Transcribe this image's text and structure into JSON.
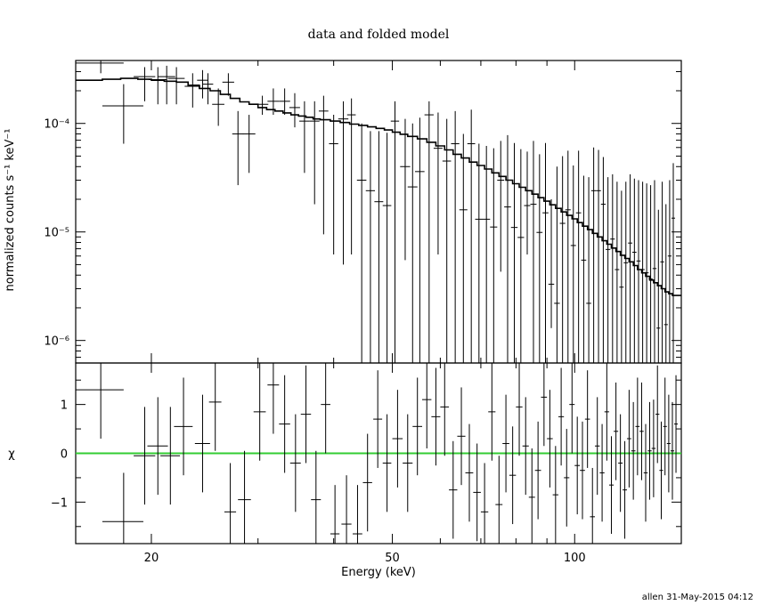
{
  "title": "data and folded model",
  "footer": "allen 31-May-2015 04:12",
  "colors": {
    "model": "#000000",
    "data": "#000000",
    "zero_line": "#33cc33"
  },
  "chart_data": [
    {
      "panel": "top",
      "type": "line",
      "title": "data and folded model",
      "xlabel": "",
      "ylabel": "normalized counts s⁻¹ keV⁻¹",
      "xscale": "log",
      "yscale": "log",
      "xlim": [
        15,
        150
      ],
      "ylim": [
        6.2e-07,
        0.00038
      ],
      "ytick_labels": [
        "10⁻⁶",
        "10⁻⁵",
        "10⁻⁴"
      ],
      "ytick_values": [
        1e-06,
        1e-05,
        0.0001
      ],
      "series": [
        {
          "kind": "data_points_with_errors",
          "x": [
            16.5,
            18.0,
            19.5,
            20.5,
            21.2,
            22.0,
            23.4,
            24.3,
            24.8,
            25.8,
            26.8,
            27.8,
            29.0,
            30.5,
            31.8,
            33.2,
            34.5,
            35.8,
            37.2,
            38.5,
            40.0,
            41.5,
            42.8,
            44.5,
            46.0,
            47.5,
            49.0,
            50.5,
            52.5,
            54.0,
            55.5,
            57.5,
            59.5,
            61.5,
            63.5,
            65.5,
            67.5,
            69.5,
            71.5,
            73.5,
            75.5,
            77.5,
            79.5,
            81.5,
            83.5,
            85.5,
            87.5,
            89.5,
            91.5,
            93.5,
            95.5,
            97.5,
            99.5,
            101.5,
            103.5,
            105.5,
            107.5,
            109.5,
            111.5,
            113.5,
            115.5,
            117.5,
            119.5,
            121.5,
            123.5,
            125.5,
            127.5,
            129.5,
            131.5,
            133.5,
            135.5,
            137.5,
            139.5,
            141.5,
            143.5,
            145.5
          ],
          "y": [
            0.00036,
            0.000145,
            0.00027,
            0.000253,
            0.00027,
            0.00026,
            0.00022,
            0.00025,
            0.00023,
            0.00015,
            0.00024,
            8e-05,
            8e-05,
            0.00015,
            0.00016,
            0.00016,
            0.00014,
            0.000105,
            0.000105,
            0.00013,
            6.5e-05,
            0.00011,
            0.00012,
            3e-05,
            2.4e-05,
            1.9e-05,
            1.75e-05,
            0.000105,
            4e-05,
            2.6e-05,
            3.6e-05,
            0.00012,
            5.9e-05,
            4.5e-05,
            6.5e-05,
            1.6e-05,
            6.5e-05,
            1.31e-05,
            1.31e-05,
            1.11e-05,
            3e-05,
            1.7e-05,
            1.1e-05,
            8.9e-06,
            1.75e-05,
            1.8e-05,
            9.9e-06,
            1.5e-05,
            3.3e-06,
            2.2e-06,
            1.2e-05,
            1.6e-05,
            7.5e-06,
            1.5e-05,
            5.5e-06,
            2.2e-06,
            2.4e-05,
            2.4e-05,
            1.8e-05,
            6.9e-06,
            8.6e-06,
            4.5e-06,
            3.1e-06,
            5.2e-06,
            7.9e-06,
            6.5e-06,
            5.4e-06,
            4.5e-06,
            4.2e-06,
            3.7e-06,
            4.6e-06,
            1.3e-06,
            5.3e-06,
            1.4e-06,
            6e-06,
            1.34e-05
          ],
          "xerr": [
            1.5,
            1.4,
            0.8,
            0.7,
            0.7,
            0.7,
            0.7,
            0.5,
            0.5,
            0.6,
            0.6,
            0.6,
            0.7,
            0.7,
            0.7,
            0.7,
            0.7,
            0.7,
            0.7,
            0.7,
            0.7,
            0.8,
            0.7,
            0.8,
            0.8,
            0.8,
            0.8,
            0.8,
            1.0,
            1.0,
            1.0,
            1.0,
            1.0,
            1.0,
            1.0,
            1.0,
            1.0,
            1.0,
            1.0,
            1.0,
            1.0,
            1.0,
            1.0,
            1.0,
            1.0,
            1.0,
            1.0,
            1.0,
            1.0,
            1.0,
            1.0,
            1.0,
            1.0,
            1.0,
            1.0,
            1.0,
            1.0,
            1.0,
            1.0,
            1.0,
            1.0,
            1.0,
            1.0,
            1.0,
            1.0,
            1.0,
            1.0,
            1.0,
            1.0,
            1.0,
            1.0,
            1.0,
            1.0,
            1.0,
            1.0,
            1.0
          ],
          "ylo": [
            0.00029,
            6.5e-05,
            0.00016,
            0.00015,
            0.00015,
            0.00015,
            0.00014,
            0.00017,
            0.00015,
            9.5e-05,
            0.00018,
            2.7e-05,
            3.5e-05,
            0.00012,
            0.00012,
            0.00012,
            9.2e-05,
            3.5e-05,
            1.8e-05,
            9.5e-06,
            6.2e-06,
            5e-06,
            6.2e-06,
            6.2e-07,
            6.2e-07,
            6.2e-07,
            6.2e-07,
            6.2e-07,
            5.5e-06,
            6.2e-07,
            6.2e-07,
            5e-07,
            6.2e-06,
            6.2e-07,
            6.2e-07,
            6.2e-07,
            3.75e-07,
            6.2e-07,
            6.2e-07,
            6.2e-07,
            4.3e-06,
            6.2e-07,
            6.2e-07,
            6.2e-07,
            6.2e-06,
            6.2e-07,
            6.2e-07,
            6.2e-07,
            1.3e-06,
            6.2e-07,
            6.2e-07,
            6.2e-07,
            6.2e-07,
            6.2e-07,
            6.2e-07,
            6.2e-07,
            6.2e-07,
            6.2e-07,
            6.2e-07,
            6.2e-07,
            6.2e-07,
            6.2e-07,
            6.2e-07,
            6.2e-07,
            6.2e-07,
            6.2e-07,
            6.2e-07,
            6.2e-07,
            6.2e-07,
            6.2e-07,
            6.2e-07,
            6.2e-07,
            6.2e-07,
            6.2e-07,
            6.2e-07,
            6.2e-07
          ],
          "yhi": [
            0.00038,
            0.00023,
            0.00033,
            0.00033,
            0.00034,
            0.00033,
            0.00029,
            0.00031,
            0.00029,
            0.00021,
            0.00029,
            0.00013,
            0.00012,
            0.00018,
            0.00021,
            0.00021,
            0.00019,
            0.00016,
            0.00016,
            0.00018,
            0.00012,
            0.00016,
            0.00017,
            0.0001,
            8.5e-05,
            8.5e-05,
            8.2e-05,
            0.00016,
            0.00011,
            0.0001,
            0.000113,
            0.00016,
            0.000126,
            0.00011,
            0.00013,
            8e-05,
            0.000134,
            6.5e-05,
            6.2e-05,
            5.9e-05,
            6.9e-05,
            7.8e-05,
            6.6e-05,
            5.8e-05,
            5.5e-05,
            6.9e-05,
            5.2e-05,
            6.6e-05,
            2e-05,
            4e-05,
            5e-05,
            5.6e-05,
            4.1e-05,
            5.6e-05,
            3.3e-05,
            3.2e-05,
            6e-05,
            5.7e-05,
            4.9e-05,
            3.2e-05,
            3.4e-05,
            2.9e-05,
            2.4e-05,
            2.9e-05,
            3.4e-05,
            3.1e-05,
            3e-05,
            2.9e-05,
            2.8e-05,
            2.7e-05,
            3e-05,
            1.6e-05,
            2.9e-05,
            1.8e-05,
            3e-05,
            4.3e-05
          ]
        },
        {
          "kind": "model_step",
          "edges": [
            15,
            16.6,
            17.8,
            19.0,
            20.0,
            21.0,
            22.0,
            23.0,
            24.0,
            25.0,
            26.0,
            27.0,
            28.0,
            29.0,
            30.0,
            31.0,
            32.0,
            33.0,
            34.0,
            35.0,
            36.0,
            37.0,
            38.0,
            39.5,
            41.0,
            42.5,
            44.0,
            45.5,
            47.0,
            48.5,
            50.0,
            51.5,
            53.0,
            55.0,
            57.0,
            59.0,
            61.0,
            63.0,
            65.0,
            67.0,
            69.0,
            71.0,
            73.0,
            75.0,
            77.0,
            79.0,
            81.0,
            83.0,
            85.0,
            87.0,
            89.0,
            91.0,
            93.0,
            95.0,
            97.0,
            99.0,
            101.0,
            103.0,
            105.0,
            107.0,
            109.0,
            111.0,
            113.0,
            115.0,
            117.0,
            119.0,
            121.0,
            123.0,
            125.0,
            127.0,
            129.0,
            131.0,
            133.0,
            135.0,
            137.0,
            139.0,
            141.0,
            143.0,
            145.0,
            147.0,
            150.0
          ],
          "values": [
            0.00025,
            0.000255,
            0.00026,
            0.000255,
            0.00025,
            0.000245,
            0.00024,
            0.000225,
            0.00021,
            0.0002,
            0.000185,
            0.00017,
            0.000158,
            0.00015,
            0.00014,
            0.000134,
            0.00013,
            0.000125,
            0.00012,
            0.000117,
            0.000114,
            0.00011,
            0.000108,
            0.000105,
            0.000102,
            9.85e-05,
            9.6e-05,
            9.3e-05,
            9e-05,
            8.7e-05,
            8.3e-05,
            7.95e-05,
            7.6e-05,
            7.2e-05,
            6.7e-05,
            6.2e-05,
            5.7e-05,
            5.2e-05,
            4.8e-05,
            4.4e-05,
            4.1e-05,
            3.8e-05,
            3.5e-05,
            3.25e-05,
            3e-05,
            2.78e-05,
            2.58e-05,
            2.4e-05,
            2.23e-05,
            2.07e-05,
            1.92e-05,
            1.78e-05,
            1.65e-05,
            1.53e-05,
            1.42e-05,
            1.32e-05,
            1.22e-05,
            1.13e-05,
            1.05e-05,
            9.7e-06,
            9e-06,
            8.3e-06,
            7.7e-06,
            7.1e-06,
            6.6e-06,
            6.1e-06,
            5.7e-06,
            5.3e-06,
            4.9e-06,
            4.5e-06,
            4.2e-06,
            3.9e-06,
            3.6e-06,
            3.4e-06,
            3.2e-06,
            3e-06,
            2.8e-06,
            2.7e-06,
            2.6e-06,
            2.6e-06
          ]
        }
      ]
    },
    {
      "panel": "bottom",
      "type": "scatter",
      "xlabel": "Energy (keV)",
      "ylabel": "χ",
      "xscale": "log",
      "xlim": [
        15,
        150
      ],
      "ylim": [
        -1.85,
        1.85
      ],
      "xtick_labels": [
        "20",
        "50",
        "100"
      ],
      "xtick_values": [
        20,
        50,
        100
      ],
      "ytick_labels": [
        "−1",
        "0",
        "1"
      ],
      "ytick_values": [
        -1,
        0,
        1
      ],
      "zero_line": 0,
      "series": [
        {
          "kind": "residuals_with_errors",
          "x": [
            16.5,
            18.0,
            19.5,
            20.5,
            21.5,
            22.6,
            24.3,
            25.5,
            27.0,
            28.5,
            30.2,
            31.8,
            33.2,
            34.6,
            36.0,
            37.4,
            38.8,
            40.2,
            42.0,
            43.8,
            45.5,
            47.3,
            49.0,
            51.0,
            53.0,
            55.0,
            57.0,
            59.0,
            61.0,
            63.0,
            65.0,
            67.0,
            69.0,
            71.0,
            73.0,
            75.0,
            77.0,
            79.0,
            81.0,
            83.0,
            85.0,
            87.0,
            89.0,
            91.0,
            93.0,
            95.0,
            97.0,
            99.0,
            101.0,
            103.0,
            105.0,
            107.0,
            109.0,
            111.0,
            113.0,
            115.0,
            117.0,
            119.0,
            121.0,
            123.0,
            125.0,
            127.0,
            129.0,
            131.0,
            133.0,
            135.0,
            137.0,
            139.0,
            141.0,
            143.0,
            145.0,
            147.0
          ],
          "y": [
            1.3,
            -1.4,
            -0.05,
            0.15,
            -0.05,
            0.55,
            0.2,
            1.05,
            -1.2,
            -0.95,
            0.85,
            1.4,
            0.6,
            -0.2,
            0.8,
            -0.95,
            1.0,
            -1.65,
            -1.45,
            -1.65,
            -0.6,
            0.7,
            -0.2,
            0.3,
            -0.2,
            0.55,
            1.1,
            0.75,
            0.95,
            -0.75,
            0.35,
            -0.4,
            -0.8,
            -1.2,
            0.85,
            -1.05,
            0.2,
            -0.45,
            0.95,
            0.15,
            -0.9,
            -0.35,
            1.15,
            0.3,
            -0.85,
            0.75,
            -0.5,
            1.0,
            -0.25,
            -0.35,
            0.7,
            -1.3,
            0.15,
            -0.4,
            0.85,
            -0.65,
            0.45,
            -0.2,
            -0.75,
            0.3,
            0.05,
            0.55,
            0.45,
            -0.4,
            0.05,
            0.1,
            0.8,
            -0.35,
            0.55,
            0.2,
            0.05,
            0.6
          ],
          "xerr": [
            1.5,
            1.4,
            0.8,
            0.8,
            0.8,
            0.8,
            0.7,
            0.6,
            0.6,
            0.7,
            0.7,
            0.7,
            0.7,
            0.7,
            0.7,
            0.7,
            0.7,
            0.7,
            0.8,
            0.8,
            0.8,
            0.8,
            0.8,
            1.0,
            1.0,
            1.0,
            1.0,
            1.0,
            1.0,
            1.0,
            1.0,
            1.0,
            1.0,
            1.0,
            1.0,
            1.0,
            1.0,
            1.0,
            1.0,
            1.0,
            1.0,
            1.0,
            1.0,
            1.0,
            1.0,
            1.0,
            1.0,
            1.0,
            1.0,
            1.0,
            1.0,
            1.0,
            1.0,
            1.0,
            1.0,
            1.0,
            1.0,
            1.0,
            1.0,
            1.0,
            1.0,
            1.0,
            1.0,
            1.0,
            1.0,
            1.0,
            1.0,
            1.0,
            1.0,
            1.0,
            1.0,
            1.0
          ],
          "yerr": 1.0
        }
      ]
    }
  ]
}
